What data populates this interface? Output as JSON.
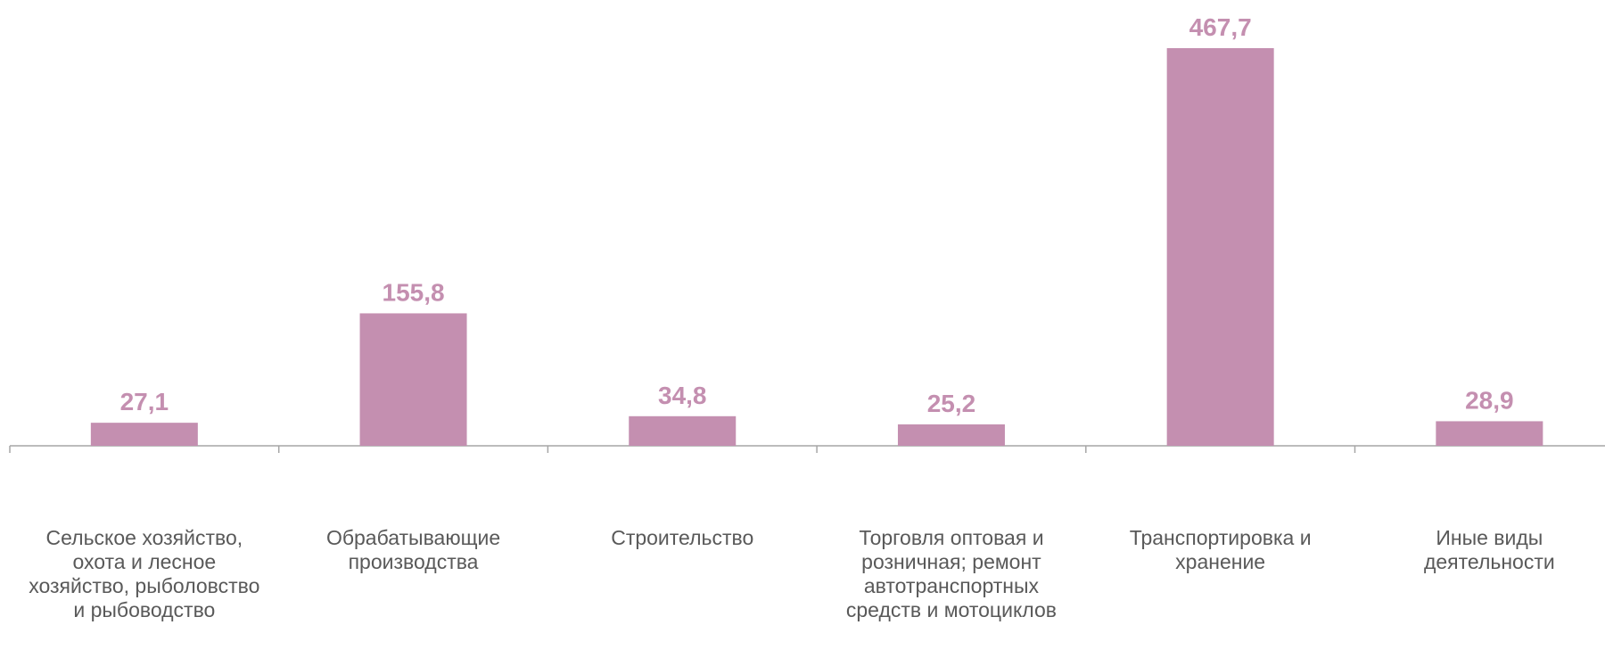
{
  "chart_data": {
    "type": "bar",
    "categories": [
      "Сельское хозяйство, охота и лесное хозяйство, рыболовство и рыбоводство",
      "Обрабатывающие производства",
      "Строительство",
      "Торговля оптовая и розничная; ремонт автотранспортных средств и мотоциклов",
      "Транспортировка и хранение",
      "Иные виды деятельности"
    ],
    "values": [
      27.1,
      155.8,
      34.8,
      25.2,
      467.7,
      28.9
    ],
    "value_labels": [
      "27,1",
      "155,8",
      "34,8",
      "25,2",
      "467,7",
      "28,9"
    ],
    "color": "#c48fb0"
  }
}
